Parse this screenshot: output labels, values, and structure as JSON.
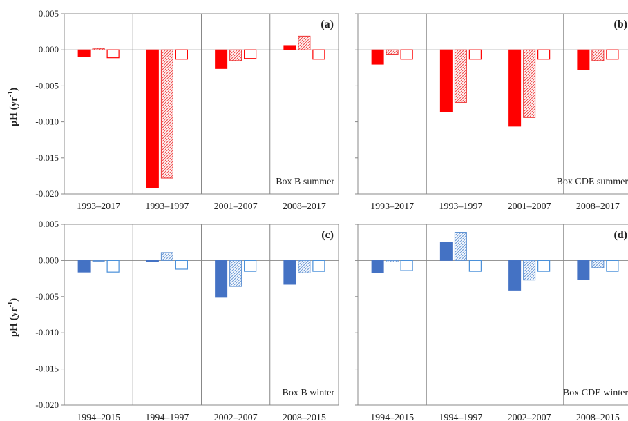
{
  "figure": {
    "ylabel_main": "pH (yr",
    "ylabel_sup": "-1",
    "ylabel_end": ")",
    "colors": {
      "summer": "#ff0000",
      "winter": "#4472c4",
      "summer_hatch_stroke": "#ee3333",
      "winter_hatch_stroke": "#5b8fd1",
      "winter_outline": "#4a90d9",
      "frame": "#888888",
      "zero_line": "#888888"
    }
  },
  "chart_data": [
    {
      "type": "bar",
      "panel_label": "(a)",
      "box_label": "Box B summer",
      "season": "summer",
      "ylim": [
        -0.02,
        0.005
      ],
      "ytick_labels": [
        "0.005",
        "0.000",
        "-0.005",
        "-0.010",
        "-0.015",
        "-0.020"
      ],
      "categories": [
        "1993–2017",
        "1993–1997",
        "2001–2007",
        "2008–2017"
      ],
      "series": [
        {
          "style": "solid",
          "values": [
            -0.0009,
            -0.0191,
            -0.0026,
            0.0006
          ]
        },
        {
          "style": "hatched",
          "values": [
            0.0002,
            -0.0178,
            -0.0015,
            0.0019
          ]
        },
        {
          "style": "outline",
          "values": [
            -0.0011,
            -0.0013,
            -0.0012,
            -0.0013
          ]
        }
      ]
    },
    {
      "type": "bar",
      "panel_label": "(b)",
      "box_label": "Box CDE summer",
      "season": "summer",
      "ylim": [
        -0.02,
        0.005
      ],
      "ytick_labels": [],
      "categories": [
        "1993–2017",
        "1993–1997",
        "2001–2007",
        "2008–2017"
      ],
      "series": [
        {
          "style": "solid",
          "values": [
            -0.002,
            -0.0086,
            -0.0106,
            -0.0028
          ]
        },
        {
          "style": "hatched",
          "values": [
            -0.0006,
            -0.0073,
            -0.0094,
            -0.0015
          ]
        },
        {
          "style": "outline",
          "values": [
            -0.0013,
            -0.0013,
            -0.0013,
            -0.0013
          ]
        }
      ]
    },
    {
      "type": "bar",
      "panel_label": "(c)",
      "box_label": "Box B winter",
      "season": "winter",
      "ylim": [
        -0.02,
        0.005
      ],
      "ytick_labels": [
        "0.005",
        "0.000",
        "-0.005",
        "-0.010",
        "-0.015",
        "-0.020"
      ],
      "categories": [
        "1994–2015",
        "1994–1997",
        "2002–2007",
        "2008–2015"
      ],
      "series": [
        {
          "style": "solid",
          "values": [
            -0.0016,
            -0.0002,
            -0.0051,
            -0.0033
          ]
        },
        {
          "style": "hatched",
          "values": [
            0.0,
            0.0011,
            -0.0036,
            -0.0017
          ]
        },
        {
          "style": "outline",
          "values": [
            -0.0016,
            -0.0012,
            -0.0015,
            -0.0015
          ]
        }
      ]
    },
    {
      "type": "bar",
      "panel_label": "(d)",
      "box_label": "Box CDE winter",
      "season": "winter",
      "ylim": [
        -0.02,
        0.005
      ],
      "ytick_labels": [],
      "categories": [
        "1994–2015",
        "1994–1997",
        "2002–2007",
        "2008–2015"
      ],
      "series": [
        {
          "style": "solid",
          "values": [
            -0.0017,
            0.0025,
            -0.0041,
            -0.0026
          ]
        },
        {
          "style": "hatched",
          "values": [
            -0.0002,
            0.0039,
            -0.0027,
            -0.001
          ]
        },
        {
          "style": "outline",
          "values": [
            -0.0014,
            -0.0015,
            -0.0015,
            -0.0015
          ]
        }
      ]
    }
  ]
}
